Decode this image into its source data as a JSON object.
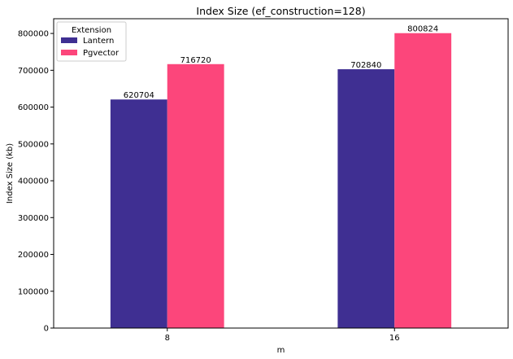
{
  "chart_data": {
    "type": "bar",
    "title": "Index Size (ef_construction=128)",
    "xlabel": "m",
    "ylabel": "Index Size (kb)",
    "categories": [
      "8",
      "16"
    ],
    "series": [
      {
        "name": "Lantern",
        "values": [
          620704,
          702840
        ],
        "color": "#3f2f92"
      },
      {
        "name": "Pgvector",
        "values": [
          716720,
          800824
        ],
        "color": "#fc467b"
      }
    ],
    "ylim": [
      0,
      840000
    ],
    "yticks": [
      0,
      100000,
      200000,
      300000,
      400000,
      500000,
      600000,
      700000,
      800000
    ],
    "grid": false,
    "legend": {
      "title": "Extension",
      "position": "top-left"
    }
  }
}
